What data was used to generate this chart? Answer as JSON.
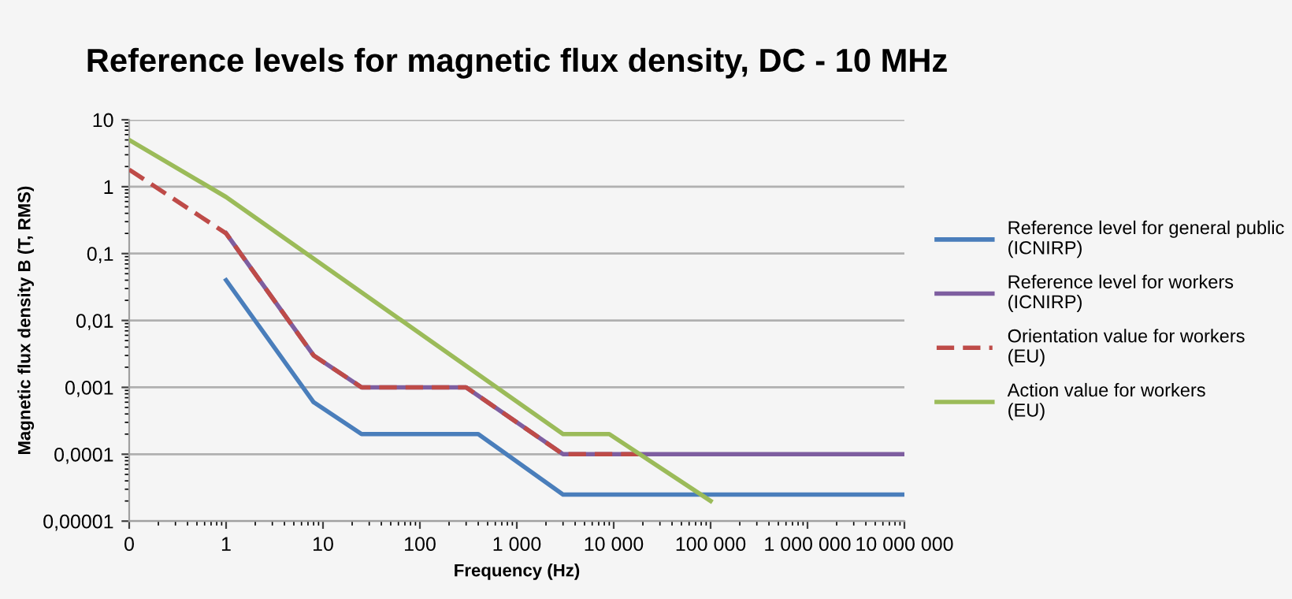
{
  "chart_data": {
    "type": "line",
    "title": "Reference levels for magnetic flux density, DC - 10 MHz",
    "xlabel": "Frequency (Hz)",
    "ylabel": "Magnetic flux density B (T, RMS)",
    "log": "xy",
    "grid": "y",
    "legend": "right",
    "line_style": "solid",
    "marker": "none",
    "xlim": [
      0.1,
      10000000
    ],
    "ylim": [
      1e-05,
      10
    ],
    "xticks": [
      {
        "value": 0.1,
        "label": "0"
      },
      1,
      10,
      100,
      {
        "value": 1000,
        "label": "1 000"
      },
      {
        "value": 10000,
        "label": "10 000"
      },
      {
        "value": 100000,
        "label": "100 000"
      },
      {
        "value": 1000000,
        "label": "1 000 000"
      },
      {
        "value": 10000000,
        "label": "10 000 000"
      }
    ],
    "yticks": [
      {
        "value": 1e-05,
        "label": "0,00001"
      },
      {
        "value": 0.0001,
        "label": "0,0001"
      },
      {
        "value": 0.001,
        "label": "0,001"
      },
      {
        "value": 0.01,
        "label": "0,01"
      },
      {
        "value": 0.1,
        "label": "0,1"
      },
      1,
      10
    ],
    "series": [
      {
        "name": "Reference level for general public\n(ICNIRP)",
        "color": "#4a7ebb",
        "x": [
          1,
          8,
          25,
          400,
          3000,
          10000000
        ],
        "values": [
          0.04,
          0.0006,
          0.0002,
          0.0002,
          2.5e-05,
          2.5e-05
        ]
      },
      {
        "name": "Reference level for workers\n(ICNIRP)",
        "color": "#7e5ea0",
        "x": [
          1,
          8,
          25,
          300,
          3000,
          10000000
        ],
        "values": [
          0.2,
          0.003,
          0.001,
          0.001,
          0.0001,
          0.0001
        ]
      },
      {
        "name": "Orientation value for workers\n(EU)",
        "color": "#be4b48",
        "line_style": "dashed",
        "x": [
          0.1,
          1,
          8,
          25,
          300,
          3000,
          20000
        ],
        "values": [
          1.8,
          0.2,
          0.003,
          0.001,
          0.001,
          0.0001,
          0.0001
        ]
      },
      {
        "name": "Action value for workers\n(EU)",
        "color": "#9bbb59",
        "x": [
          0.1,
          1,
          3000,
          9000,
          100000
        ],
        "values": [
          5,
          0.7,
          0.0002,
          0.0002,
          2e-05
        ]
      }
    ]
  }
}
